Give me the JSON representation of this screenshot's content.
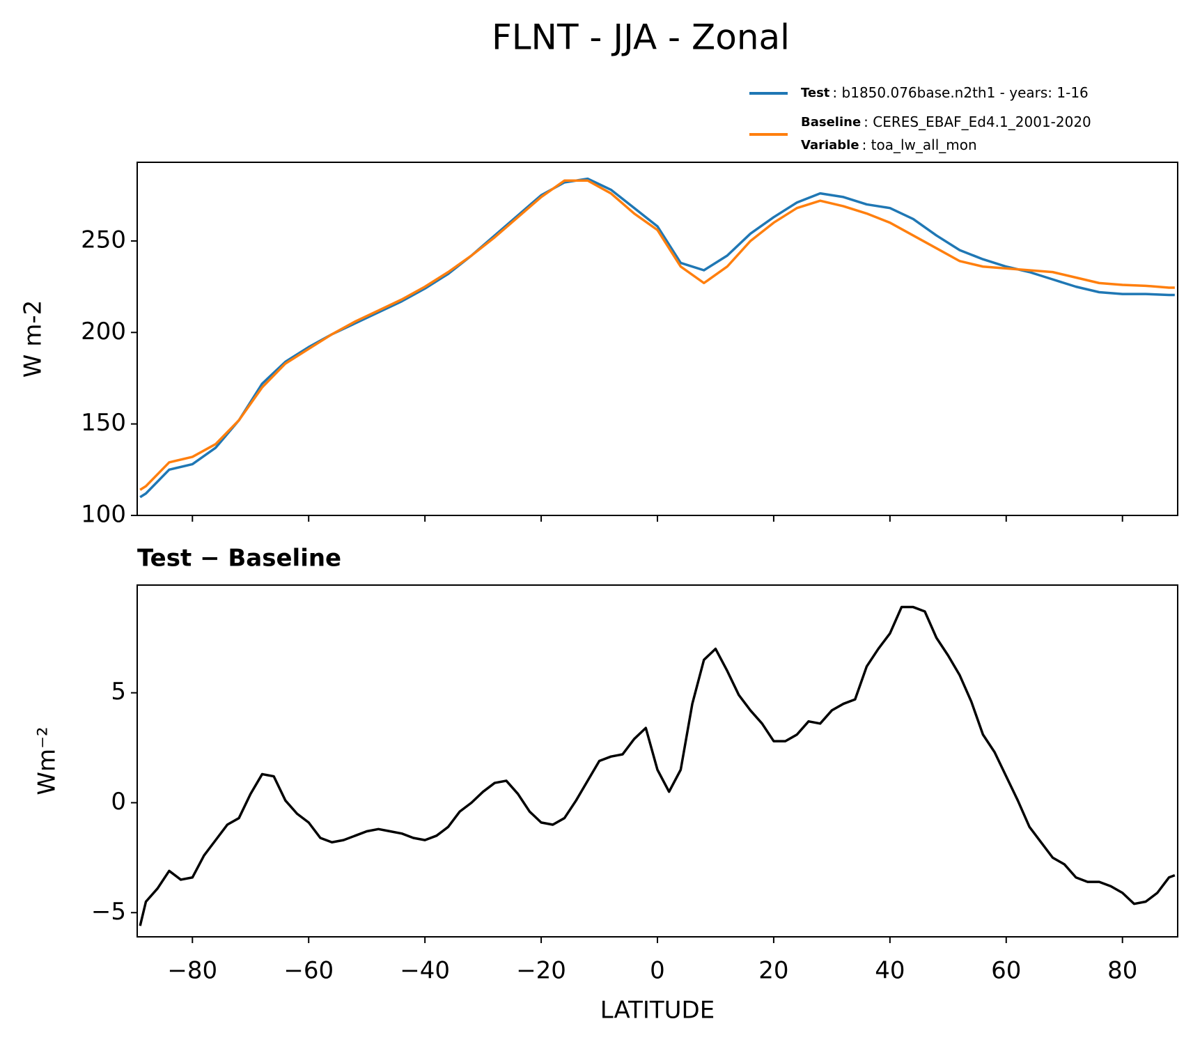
{
  "title": "FLNT - JJA - Zonal",
  "chart_data": [
    {
      "type": "line",
      "ylabel": "W m-2",
      "x": [
        -89,
        -88,
        -84,
        -80,
        -76,
        -72,
        -68,
        -64,
        -60,
        -56,
        -52,
        -48,
        -44,
        -40,
        -36,
        -32,
        -28,
        -24,
        -20,
        -16,
        -12,
        -8,
        -4,
        0,
        4,
        8,
        12,
        16,
        20,
        24,
        28,
        32,
        36,
        40,
        44,
        48,
        52,
        56,
        60,
        64,
        68,
        72,
        76,
        80,
        84,
        88,
        89
      ],
      "series": [
        {
          "name": "Test",
          "detail": ": b1850.076base.n2th1 - years: 1-16",
          "color": "#1f77b4",
          "values": [
            110,
            112,
            125,
            128,
            137,
            152,
            172,
            184,
            192,
            199,
            205,
            211,
            217,
            224,
            232,
            242,
            253,
            264,
            275,
            282,
            284,
            278,
            268,
            258,
            238,
            234,
            242,
            254,
            263,
            271,
            276,
            274,
            270,
            268,
            262,
            253,
            245,
            240,
            236,
            233,
            229,
            225,
            222,
            221,
            221,
            220.5,
            220.5
          ]
        },
        {
          "name": "Baseline",
          "detail": ": CERES_EBAF_Ed4.1_2001-2020",
          "color": "#ff7f0e",
          "values": [
            114,
            116,
            129,
            132,
            139,
            152,
            170,
            183,
            191,
            199,
            206,
            212,
            218,
            225,
            233,
            242,
            252,
            263,
            274,
            283,
            283,
            276,
            265,
            256,
            236,
            227,
            236,
            250,
            260,
            268,
            272,
            269,
            265,
            260,
            253,
            246,
            239,
            236,
            235,
            234,
            233,
            230,
            227,
            226,
            225.5,
            224.5,
            224.5
          ]
        }
      ],
      "variable": {
        "name": "Variable",
        "detail": ": toa_lw_all_mon"
      },
      "xlim": [
        -89.5,
        89.5
      ],
      "xticks": [
        -80,
        -60,
        -40,
        -20,
        0,
        20,
        40,
        60,
        80
      ],
      "ylim": [
        100,
        293
      ],
      "yticks": [
        100,
        150,
        200,
        250
      ]
    },
    {
      "type": "line",
      "title": "Test − Baseline",
      "xlabel": "LATITUDE",
      "ylabel": "Wm⁻²",
      "x": [
        -89,
        -88,
        -86,
        -84,
        -82,
        -80,
        -78,
        -76,
        -74,
        -72,
        -70,
        -68,
        -66,
        -64,
        -62,
        -60,
        -58,
        -56,
        -54,
        -52,
        -50,
        -48,
        -46,
        -44,
        -42,
        -40,
        -38,
        -36,
        -34,
        -32,
        -30,
        -28,
        -26,
        -24,
        -22,
        -20,
        -18,
        -16,
        -14,
        -12,
        -10,
        -8,
        -6,
        -4,
        -2,
        0,
        2,
        4,
        6,
        8,
        10,
        12,
        14,
        16,
        18,
        20,
        22,
        24,
        26,
        28,
        30,
        32,
        34,
        36,
        38,
        40,
        42,
        44,
        46,
        48,
        50,
        52,
        54,
        56,
        58,
        60,
        62,
        64,
        66,
        68,
        70,
        72,
        74,
        76,
        78,
        80,
        82,
        84,
        86,
        88,
        89
      ],
      "series": [
        {
          "color": "#000000",
          "values": [
            -5.6,
            -4.5,
            -3.9,
            -3.1,
            -3.5,
            -3.4,
            -2.4,
            -1.7,
            -1.0,
            -0.7,
            0.4,
            1.3,
            1.2,
            0.1,
            -0.5,
            -0.9,
            -1.6,
            -1.8,
            -1.7,
            -1.5,
            -1.3,
            -1.2,
            -1.3,
            -1.4,
            -1.6,
            -1.7,
            -1.5,
            -1.1,
            -0.4,
            0,
            0.5,
            0.9,
            1.0,
            0.4,
            -0.4,
            -0.9,
            -1.0,
            -0.7,
            0.1,
            1.0,
            1.9,
            2.1,
            2.2,
            2.9,
            3.4,
            1.5,
            0.5,
            1.5,
            4.5,
            6.5,
            7.0,
            6.0,
            4.9,
            4.2,
            3.6,
            2.8,
            2.8,
            3.1,
            3.7,
            3.6,
            4.2,
            4.5,
            4.7,
            6.2,
            7.0,
            7.7,
            8.9,
            8.9,
            8.7,
            7.5,
            6.7,
            5.8,
            4.6,
            3.1,
            2.3,
            1.2,
            0.1,
            -1.1,
            -1.8,
            -2.5,
            -2.8,
            -3.4,
            -3.6,
            -3.6,
            -3.8,
            -4.1,
            -4.6,
            -4.5,
            -4.1,
            -3.4,
            -3.3
          ]
        }
      ],
      "xlim": [
        -89.5,
        89.5
      ],
      "xticks": [
        {
          "value": -80,
          "label": "−80"
        },
        {
          "value": -60,
          "label": "−60"
        },
        {
          "value": -40,
          "label": "−40"
        },
        {
          "value": -20,
          "label": "−20"
        },
        0,
        20,
        40,
        60,
        80
      ],
      "ylim": [
        -6.1,
        9.9
      ],
      "yticks": [
        {
          "value": -5,
          "label": "−5"
        },
        0,
        5
      ]
    }
  ]
}
